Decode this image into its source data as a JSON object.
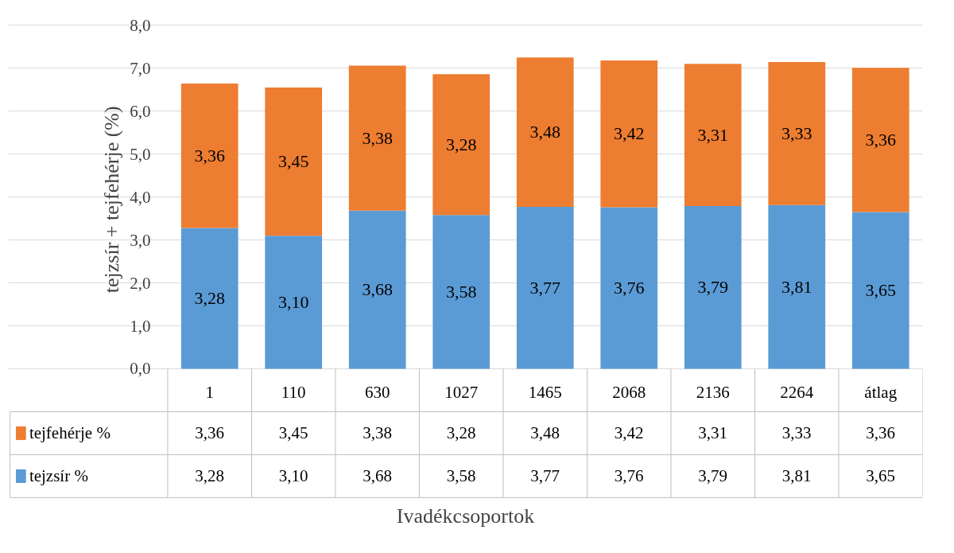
{
  "chart_data": {
    "type": "bar",
    "stacked": true,
    "xlabel": "Ivadékcsoportok",
    "ylabel": "tejzsír + tejfehérje  (%)",
    "categories": [
      "1",
      "110",
      "630",
      "1027",
      "1465",
      "2068",
      "2136",
      "2264",
      "átlag"
    ],
    "series": [
      {
        "name": "tejzsír %",
        "color": "#5b9bd5",
        "values": [
          3.28,
          3.1,
          3.68,
          3.58,
          3.77,
          3.76,
          3.79,
          3.81,
          3.65
        ],
        "value_labels": [
          "3,28",
          "3,10",
          "3,68",
          "3,58",
          "3,77",
          "3,76",
          "3,79",
          "3,81",
          "3,65"
        ]
      },
      {
        "name": "tejfehérje %",
        "color": "#ed7d31",
        "values": [
          3.36,
          3.45,
          3.38,
          3.28,
          3.48,
          3.42,
          3.31,
          3.33,
          3.36
        ],
        "value_labels": [
          "3,36",
          "3,45",
          "3,38",
          "3,28",
          "3,48",
          "3,42",
          "3,31",
          "3,33",
          "3,36"
        ]
      }
    ],
    "ylim": [
      0,
      8
    ],
    "yticks": [
      {
        "value": 0,
        "label": "0,0"
      },
      {
        "value": 1,
        "label": "1,0"
      },
      {
        "value": 2,
        "label": "2,0"
      },
      {
        "value": 3,
        "label": "3,0"
      },
      {
        "value": 4,
        "label": "4,0"
      },
      {
        "value": 5,
        "label": "5,0"
      },
      {
        "value": 6,
        "label": "6,0"
      },
      {
        "value": 7,
        "label": "7,0"
      },
      {
        "value": 8,
        "label": "8,0"
      }
    ],
    "grid": "y",
    "legend": "bottom"
  }
}
